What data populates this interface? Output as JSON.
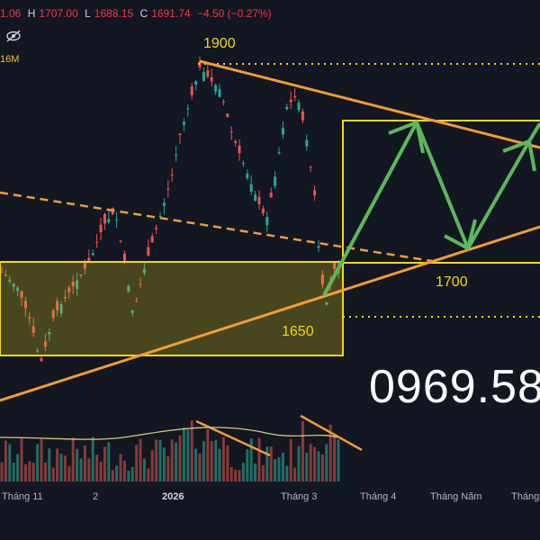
{
  "header": {
    "open_fragment": "1.06",
    "high_label": "H",
    "high": "1707.00",
    "low_label": "L",
    "low": "1688.15",
    "close_label": "C",
    "close": "1691.74",
    "change": "−4.50 (−0.27%)"
  },
  "volume_label": "16M",
  "levels": {
    "top": "1900",
    "mid": "1700",
    "bottom": "1650"
  },
  "watermark_phone": "0969.58",
  "icons": {
    "visibility": "eye-slash-icon"
  },
  "colors": {
    "background": "#131722",
    "up": "#26a69a",
    "down": "#ef5350",
    "trendline": "#f39c34",
    "zone": "#f5d90a",
    "projection": "#5cb85c"
  },
  "chart_data": {
    "type": "candlestick",
    "title": "",
    "xlabel": "",
    "ylabel": "",
    "x_ticks": [
      "Tháng 11",
      "2",
      "2026",
      "Tháng 3",
      "Tháng 4",
      "Tháng Năm",
      "Tháng"
    ],
    "price_levels": [
      1900,
      1700,
      1650
    ],
    "last_bar": {
      "high": 1707.0,
      "low": 1688.15,
      "close": 1691.74,
      "change": -4.5,
      "change_pct": -0.27
    },
    "annotations": [
      "descending resistance from 1900",
      "ascending support trendline",
      "support zone around 1650–1700",
      "projected zig-zag path"
    ]
  }
}
